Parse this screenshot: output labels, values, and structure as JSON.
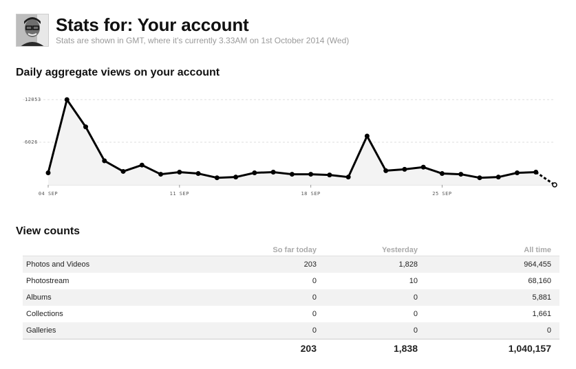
{
  "header": {
    "title": "Stats for: Your account",
    "subtitle": "Stats are shown in GMT, where it's currently 3.33AM on 1st October 2014 (Wed)"
  },
  "chart_section_title": "Daily aggregate views on your account",
  "chart_data": {
    "type": "line",
    "title": "Daily aggregate views on your account",
    "xlabel": "",
    "ylabel": "",
    "ylim": [
      0,
      12053
    ],
    "y_ticks": [
      "12053",
      "6026"
    ],
    "x_ticks": [
      {
        "label": "04 SEP",
        "index": 0
      },
      {
        "label": "11 SEP",
        "index": 7
      },
      {
        "label": "18 SEP",
        "index": 14
      },
      {
        "label": "25 SEP",
        "index": 21
      }
    ],
    "grid": true,
    "series": [
      {
        "values": [
          1700,
          12053,
          8200,
          3400,
          1900,
          2800,
          1500,
          1800,
          1600,
          1000,
          1100,
          1700,
          1800,
          1500,
          1500,
          1400,
          1100,
          6900,
          2000,
          2200,
          2500,
          1600,
          1500,
          1000,
          1100,
          1700,
          1800,
          0
        ],
        "dashed_last_segment": true
      }
    ]
  },
  "view_counts": {
    "title": "View counts",
    "columns": [
      "",
      "So far today",
      "Yesterday",
      "All time"
    ],
    "rows": [
      {
        "label": "Photos and Videos",
        "today": "203",
        "yesterday": "1,828",
        "all": "964,455"
      },
      {
        "label": "Photostream",
        "today": "0",
        "yesterday": "10",
        "all": "68,160"
      },
      {
        "label": "Albums",
        "today": "0",
        "yesterday": "0",
        "all": "5,881"
      },
      {
        "label": "Collections",
        "today": "0",
        "yesterday": "0",
        "all": "1,661"
      },
      {
        "label": "Galleries",
        "today": "0",
        "yesterday": "0",
        "all": "0"
      }
    ],
    "totals": {
      "today": "203",
      "yesterday": "1,838",
      "all": "1,040,157"
    }
  }
}
